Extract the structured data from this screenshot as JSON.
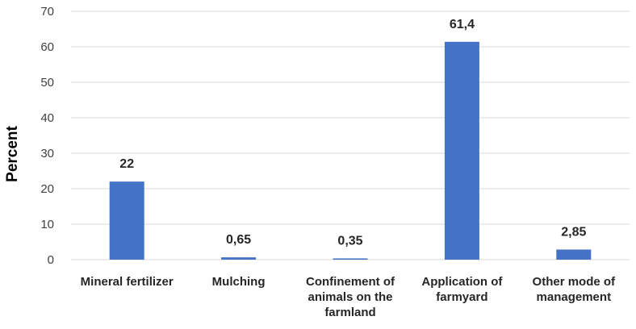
{
  "chart_data": {
    "type": "bar",
    "categories": [
      [
        "Mineral fertilizer"
      ],
      [
        "Mulching"
      ],
      [
        "Confinement of",
        "animals on the",
        "farmland"
      ],
      [
        "Application of",
        "farmyard"
      ],
      [
        "Other mode of",
        "management"
      ]
    ],
    "values": [
      22,
      0.65,
      0.35,
      61.4,
      2.85
    ],
    "data_labels": [
      "22",
      "0,65",
      "0,35",
      "61,4",
      "2,85"
    ],
    "ylabel": "Percent",
    "ylim": [
      0,
      70
    ],
    "yticks": [
      "0",
      "10",
      "20",
      "30",
      "40",
      "50",
      "60",
      "70"
    ],
    "grid": true,
    "bar_color": "#4472c4",
    "grid_color": "#d9d9d9"
  }
}
